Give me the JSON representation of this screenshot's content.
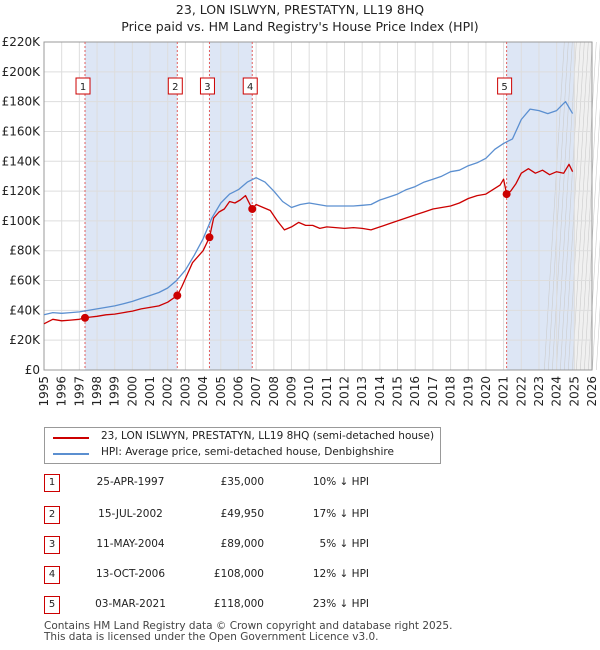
{
  "title_line1": "23, LON ISLWYN, PRESTATYN, LL19 8HQ",
  "title_line2": "Price paid vs. HM Land Registry's House Price Index (HPI)",
  "colors": {
    "property": "#cc0000",
    "hpi": "#5b8fd0",
    "shade": "#dde6f5",
    "future": "#f0f0f0",
    "grid": "#dddddd"
  },
  "chart_data": {
    "type": "line",
    "xlim": [
      1995,
      2026
    ],
    "ylim": [
      0,
      220000
    ],
    "x_ticks": [
      1995,
      1996,
      1997,
      1998,
      1999,
      2000,
      2001,
      2002,
      2003,
      2004,
      2005,
      2006,
      2007,
      2008,
      2009,
      2010,
      2011,
      2012,
      2013,
      2014,
      2015,
      2016,
      2017,
      2018,
      2019,
      2020,
      2021,
      2022,
      2023,
      2024,
      2025,
      2026
    ],
    "y_ticks": [
      {
        "value": 0,
        "label": "£0"
      },
      {
        "value": 20000,
        "label": "£20K"
      },
      {
        "value": 40000,
        "label": "£40K"
      },
      {
        "value": 60000,
        "label": "£60K"
      },
      {
        "value": 80000,
        "label": "£80K"
      },
      {
        "value": 100000,
        "label": "£100K"
      },
      {
        "value": 120000,
        "label": "£120K"
      },
      {
        "value": 140000,
        "label": "£140K"
      },
      {
        "value": 160000,
        "label": "£160K"
      },
      {
        "value": 180000,
        "label": "£180K"
      },
      {
        "value": 200000,
        "label": "£200K"
      },
      {
        "value": 220000,
        "label": "£220K"
      }
    ],
    "future_start": 2025.0,
    "shaded_ranges": [
      [
        1997.32,
        2002.54
      ],
      [
        2004.36,
        2006.78
      ],
      [
        2021.17,
        2025.0
      ]
    ],
    "series": [
      {
        "name": "23, LON ISLWYN, PRESTATYN, LL19 8HQ (semi-detached house)",
        "color": "#cc0000",
        "x": [
          1995.0,
          1995.5,
          1996.0,
          1996.5,
          1997.0,
          1997.32,
          1997.6,
          1998.0,
          1998.5,
          1999.0,
          1999.5,
          2000.0,
          2000.5,
          2001.0,
          2001.5,
          2002.0,
          2002.54,
          2002.8,
          2003.1,
          2003.4,
          2003.7,
          2004.0,
          2004.36,
          2004.6,
          2004.9,
          2005.2,
          2005.5,
          2005.8,
          2006.1,
          2006.4,
          2006.78,
          2007.0,
          2007.4,
          2007.8,
          2008.2,
          2008.6,
          2009.0,
          2009.4,
          2009.8,
          2010.2,
          2010.6,
          2011.0,
          2011.5,
          2012.0,
          2012.5,
          2013.0,
          2013.5,
          2014.0,
          2014.5,
          2015.0,
          2015.5,
          2016.0,
          2016.5,
          2017.0,
          2017.5,
          2018.0,
          2018.5,
          2019.0,
          2019.5,
          2020.0,
          2020.4,
          2020.8,
          2021.0,
          2021.17,
          2021.4,
          2021.7,
          2022.0,
          2022.4,
          2022.8,
          2023.2,
          2023.6,
          2024.0,
          2024.4,
          2024.7,
          2024.9
        ],
        "values": [
          31000,
          34000,
          33000,
          33500,
          34000,
          35000,
          35500,
          36000,
          37000,
          37500,
          38500,
          39500,
          41000,
          42000,
          43000,
          45500,
          49950,
          56000,
          64000,
          72000,
          76000,
          80000,
          89000,
          102000,
          106000,
          108000,
          113000,
          112000,
          114000,
          117000,
          108000,
          111000,
          109000,
          107000,
          100000,
          94000,
          96000,
          99000,
          97000,
          97000,
          95000,
          96000,
          95500,
          95000,
          95500,
          95000,
          94000,
          96000,
          98000,
          100000,
          102000,
          104000,
          106000,
          108000,
          109000,
          110000,
          112000,
          115000,
          117000,
          118000,
          121000,
          124000,
          128000,
          118000,
          120000,
          125000,
          132000,
          135000,
          132000,
          134000,
          131000,
          133000,
          132000,
          138000,
          133000
        ]
      },
      {
        "name": "HPI: Average price, semi-detached house, Denbighshire",
        "color": "#5b8fd0",
        "x": [
          1995.0,
          1995.5,
          1996.0,
          1996.5,
          1997.0,
          1997.5,
          1998.0,
          1998.5,
          1999.0,
          1999.5,
          2000.0,
          2000.5,
          2001.0,
          2001.5,
          2002.0,
          2002.5,
          2003.0,
          2003.5,
          2004.0,
          2004.5,
          2005.0,
          2005.5,
          2006.0,
          2006.5,
          2007.0,
          2007.5,
          2008.0,
          2008.5,
          2009.0,
          2009.5,
          2010.0,
          2010.5,
          2011.0,
          2011.5,
          2012.0,
          2012.5,
          2013.0,
          2013.5,
          2014.0,
          2014.5,
          2015.0,
          2015.5,
          2016.0,
          2016.5,
          2017.0,
          2017.5,
          2018.0,
          2018.5,
          2019.0,
          2019.5,
          2020.0,
          2020.5,
          2021.0,
          2021.5,
          2022.0,
          2022.5,
          2023.0,
          2023.5,
          2024.0,
          2024.5,
          2024.9
        ],
        "values": [
          37000,
          38500,
          38000,
          38500,
          39000,
          40000,
          41000,
          42000,
          43000,
          44500,
          46000,
          48000,
          50000,
          52000,
          55000,
          60000,
          67000,
          77000,
          88000,
          102000,
          112000,
          118000,
          121000,
          126000,
          129000,
          126000,
          120000,
          113000,
          109000,
          111000,
          112000,
          111000,
          110000,
          110000,
          110000,
          110000,
          110500,
          111000,
          114000,
          116000,
          118000,
          121000,
          123000,
          126000,
          128000,
          130000,
          133000,
          134000,
          137000,
          139000,
          142000,
          148000,
          152000,
          155000,
          168000,
          175000,
          174000,
          172000,
          174000,
          180000,
          172000
        ]
      }
    ],
    "markers": [
      {
        "label": "1",
        "x": 1997.32,
        "value": 35000
      },
      {
        "label": "2",
        "x": 2002.54,
        "value": 49950
      },
      {
        "label": "3",
        "x": 2004.36,
        "value": 89000
      },
      {
        "label": "4",
        "x": 2006.78,
        "value": 108000
      },
      {
        "label": "5",
        "x": 2021.17,
        "value": 118000
      }
    ]
  },
  "legend": {
    "property_label": "23, LON ISLWYN, PRESTATYN, LL19 8HQ (semi-detached house)",
    "hpi_label": "HPI: Average price, semi-detached house, Denbighshire"
  },
  "sales": [
    {
      "num": "1",
      "date": "25-APR-1997",
      "price": "£35,000",
      "hpi": "10% ↓ HPI"
    },
    {
      "num": "2",
      "date": "15-JUL-2002",
      "price": "£49,950",
      "hpi": "17% ↓ HPI"
    },
    {
      "num": "3",
      "date": "11-MAY-2004",
      "price": "£89,000",
      "hpi": "5% ↓ HPI"
    },
    {
      "num": "4",
      "date": "13-OCT-2006",
      "price": "£108,000",
      "hpi": "12% ↓ HPI"
    },
    {
      "num": "5",
      "date": "03-MAR-2021",
      "price": "£118,000",
      "hpi": "23% ↓ HPI"
    }
  ],
  "footer_line1": "Contains HM Land Registry data © Crown copyright and database right 2025.",
  "footer_line2": "This data is licensed under the Open Government Licence v3.0."
}
